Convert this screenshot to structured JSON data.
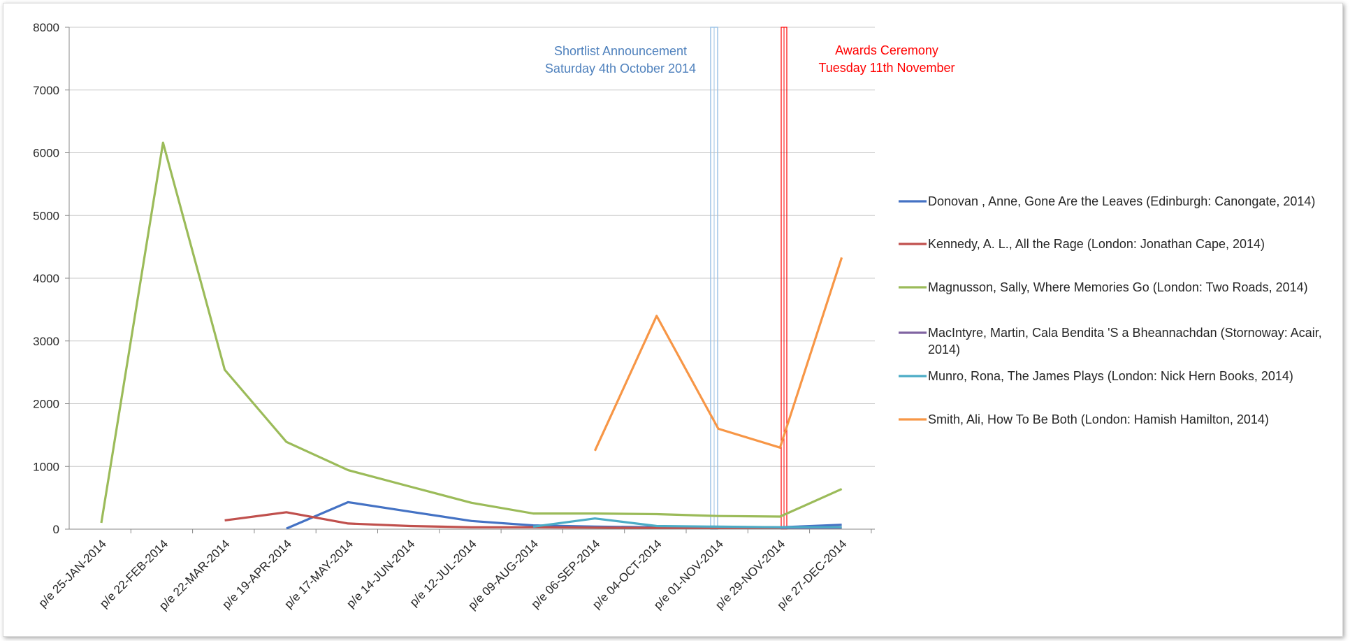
{
  "chart_data": {
    "type": "line",
    "ylim": [
      0,
      8000
    ],
    "yticks": [
      "0",
      "1000",
      "2000",
      "3000",
      "4000",
      "5000",
      "6000",
      "7000",
      "8000"
    ],
    "categories": [
      "p/e 25-JAN-2014",
      "p/e 22-FEB-2014",
      "p/e 22-MAR-2014",
      "p/e 19-APR-2014",
      "p/e 17-MAY-2014",
      "p/e 14-JUN-2014",
      "p/e 12-JUL-2014",
      "p/e 09-AUG-2014",
      "p/e 06-SEP-2014",
      "p/e 04-OCT-2014",
      "p/e 01-NOV-2014",
      "p/e 29-NOV-2014",
      "p/e 27-DEC-2014"
    ],
    "grid": true,
    "legend": "right",
    "series": [
      {
        "name": "Donovan , Anne, Gone Are the Leaves (Edinburgh: Canongate, 2014)",
        "color": "#4472c4",
        "values": [
          null,
          null,
          null,
          10,
          430,
          280,
          130,
          60,
          40,
          30,
          35,
          30,
          70
        ]
      },
      {
        "name": "Kennedy, A. L., All the Rage (London: Jonathan Cape, 2014)",
        "color": "#c0504d",
        "values": [
          null,
          null,
          140,
          270,
          90,
          50,
          30,
          30,
          25,
          20,
          20,
          20,
          30
        ]
      },
      {
        "name": "Magnusson, Sally, Where Memories Go (London: Two Roads, 2014)",
        "color": "#9bbb59",
        "values": [
          100,
          6160,
          2540,
          1390,
          940,
          680,
          420,
          250,
          250,
          240,
          210,
          200,
          640
        ]
      },
      {
        "name": "MacIntyre, Martin, Cala Bendita 'S a Bheannachdan (Stornoway: Acair, 2014)",
        "color": "#8064a2",
        "values": [
          null,
          null,
          null,
          null,
          null,
          null,
          null,
          null,
          null,
          null,
          null,
          20,
          20
        ]
      },
      {
        "name": "Munro, Rona, The James Plays (London: Nick Hern Books, 2014)",
        "color": "#4bacc6",
        "values": [
          null,
          null,
          null,
          null,
          null,
          null,
          null,
          40,
          170,
          50,
          40,
          30,
          30
        ]
      },
      {
        "name": "Smith, Ali, How To Be Both (London: Hamish Hamilton, 2014)",
        "color": "#f79646",
        "values": [
          null,
          null,
          null,
          null,
          null,
          null,
          null,
          null,
          1250,
          3400,
          1600,
          1300,
          4330
        ]
      }
    ],
    "annotations": [
      {
        "lines": [
          "Shortlist Announcement",
          "Saturday 4th October 2014"
        ],
        "color": "#4f81bd",
        "marker_color": "#9dc3e6"
      },
      {
        "lines": [
          "Awards Ceremony",
          "Tuesday 11th November"
        ],
        "color": "#ff0000",
        "marker_color": "#ff0000"
      }
    ]
  }
}
